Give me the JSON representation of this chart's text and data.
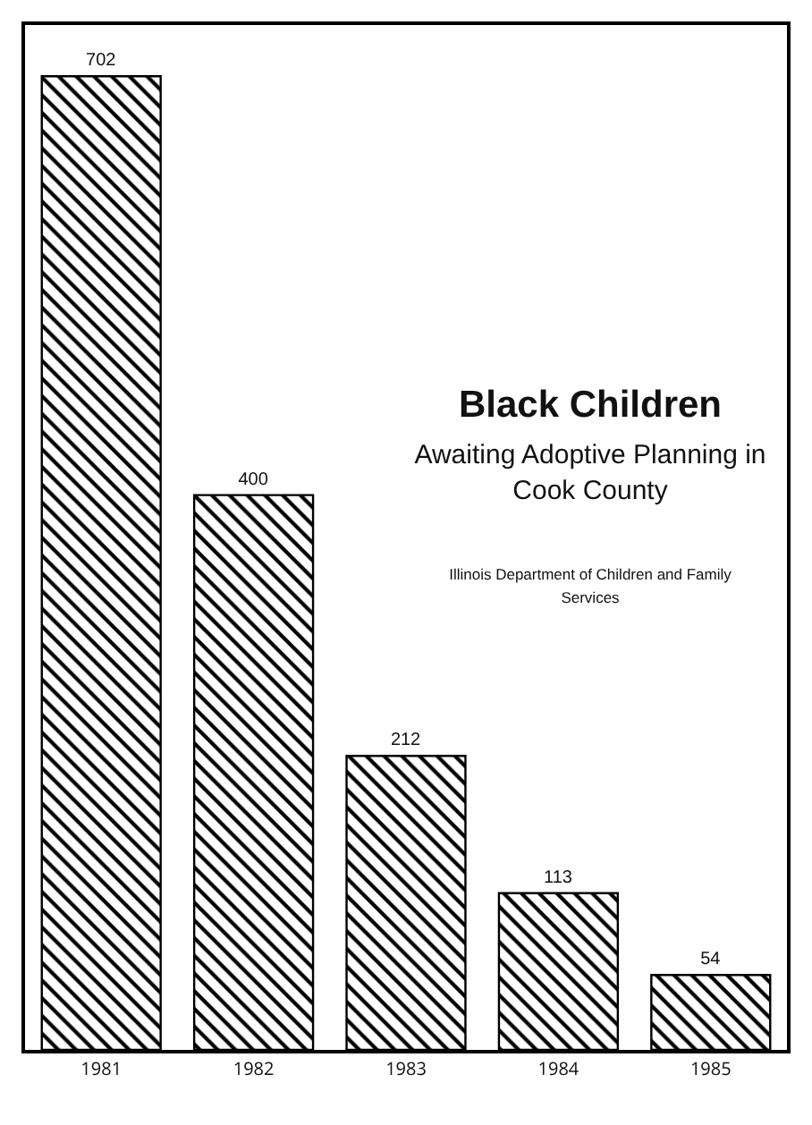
{
  "chart_data": {
    "type": "bar",
    "title": "Black Children",
    "subtitle": "Awaiting Adoptive Planning in Cook County",
    "annotations": [
      "Illinois Department of Children and Family Services"
    ],
    "categories": [
      "1981",
      "1982",
      "1983",
      "1984",
      "1985"
    ],
    "values": [
      702,
      400,
      212,
      113,
      54
    ],
    "color": "#000000",
    "data_labels": true,
    "grid": false,
    "legend": false
  }
}
